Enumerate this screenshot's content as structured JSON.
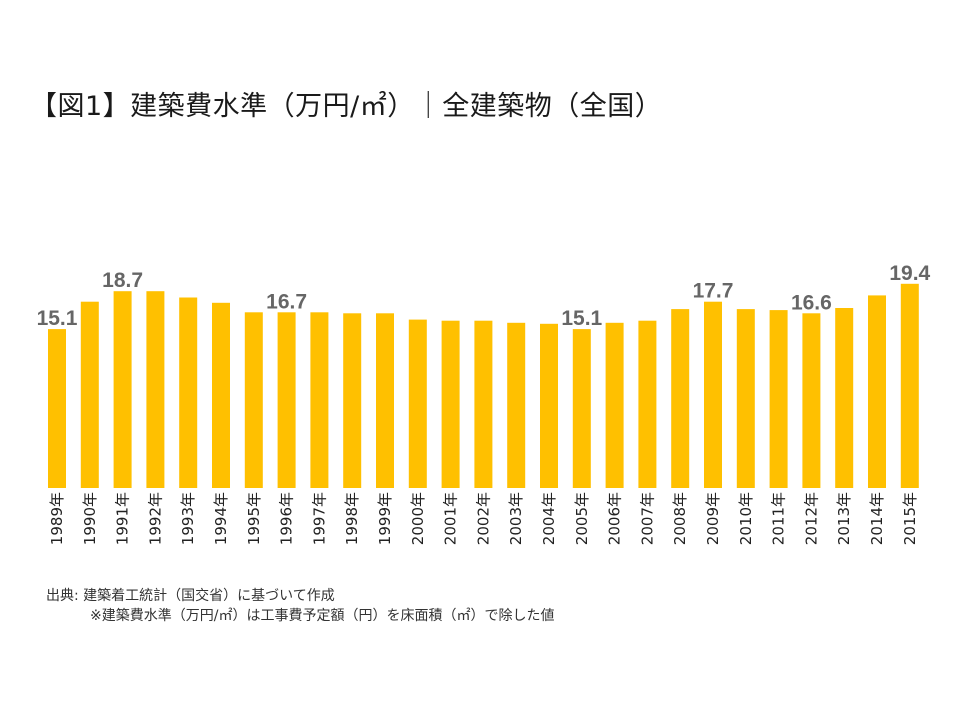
{
  "title": "【図1】建築費水準（万円/㎡）｜全建築物（全国）",
  "source": {
    "line1": "出典: 建築着工統計（国交省）に基づいて作成",
    "line2": "※建築費水準（万円/㎡）は工事費予定額（円）を床面積（㎡）で除した値"
  },
  "colors": {
    "bar": "#FFC000",
    "label": "#666666",
    "axis_text": "#222222"
  },
  "chart_data": {
    "type": "bar",
    "title": "【図1】建築費水準（万円/㎡）｜全建築物（全国）",
    "xlabel": "",
    "ylabel": "",
    "ylim": [
      0,
      21
    ],
    "grid": false,
    "legend": "none",
    "categories": [
      "1989年",
      "1990年",
      "1991年",
      "1992年",
      "1993年",
      "1994年",
      "1995年",
      "1996年",
      "1997年",
      "1998年",
      "1999年",
      "2000年",
      "2001年",
      "2002年",
      "2003年",
      "2004年",
      "2005年",
      "2006年",
      "2007年",
      "2008年",
      "2009年",
      "2010年",
      "2011年",
      "2012年",
      "2013年",
      "2014年",
      "2015年"
    ],
    "values": [
      15.1,
      17.7,
      18.7,
      18.7,
      18.1,
      17.6,
      16.7,
      16.7,
      16.7,
      16.6,
      16.6,
      16.0,
      15.9,
      15.9,
      15.7,
      15.6,
      15.1,
      15.7,
      15.9,
      17.0,
      17.7,
      17.0,
      16.9,
      16.6,
      17.1,
      18.3,
      19.4
    ],
    "data_labels": [
      {
        "index": 0,
        "text": "15.1"
      },
      {
        "index": 2,
        "text": "18.7"
      },
      {
        "index": 7,
        "text": "16.7"
      },
      {
        "index": 16,
        "text": "15.1"
      },
      {
        "index": 20,
        "text": "17.7"
      },
      {
        "index": 23,
        "text": "16.6"
      },
      {
        "index": 26,
        "text": "19.4"
      }
    ]
  }
}
